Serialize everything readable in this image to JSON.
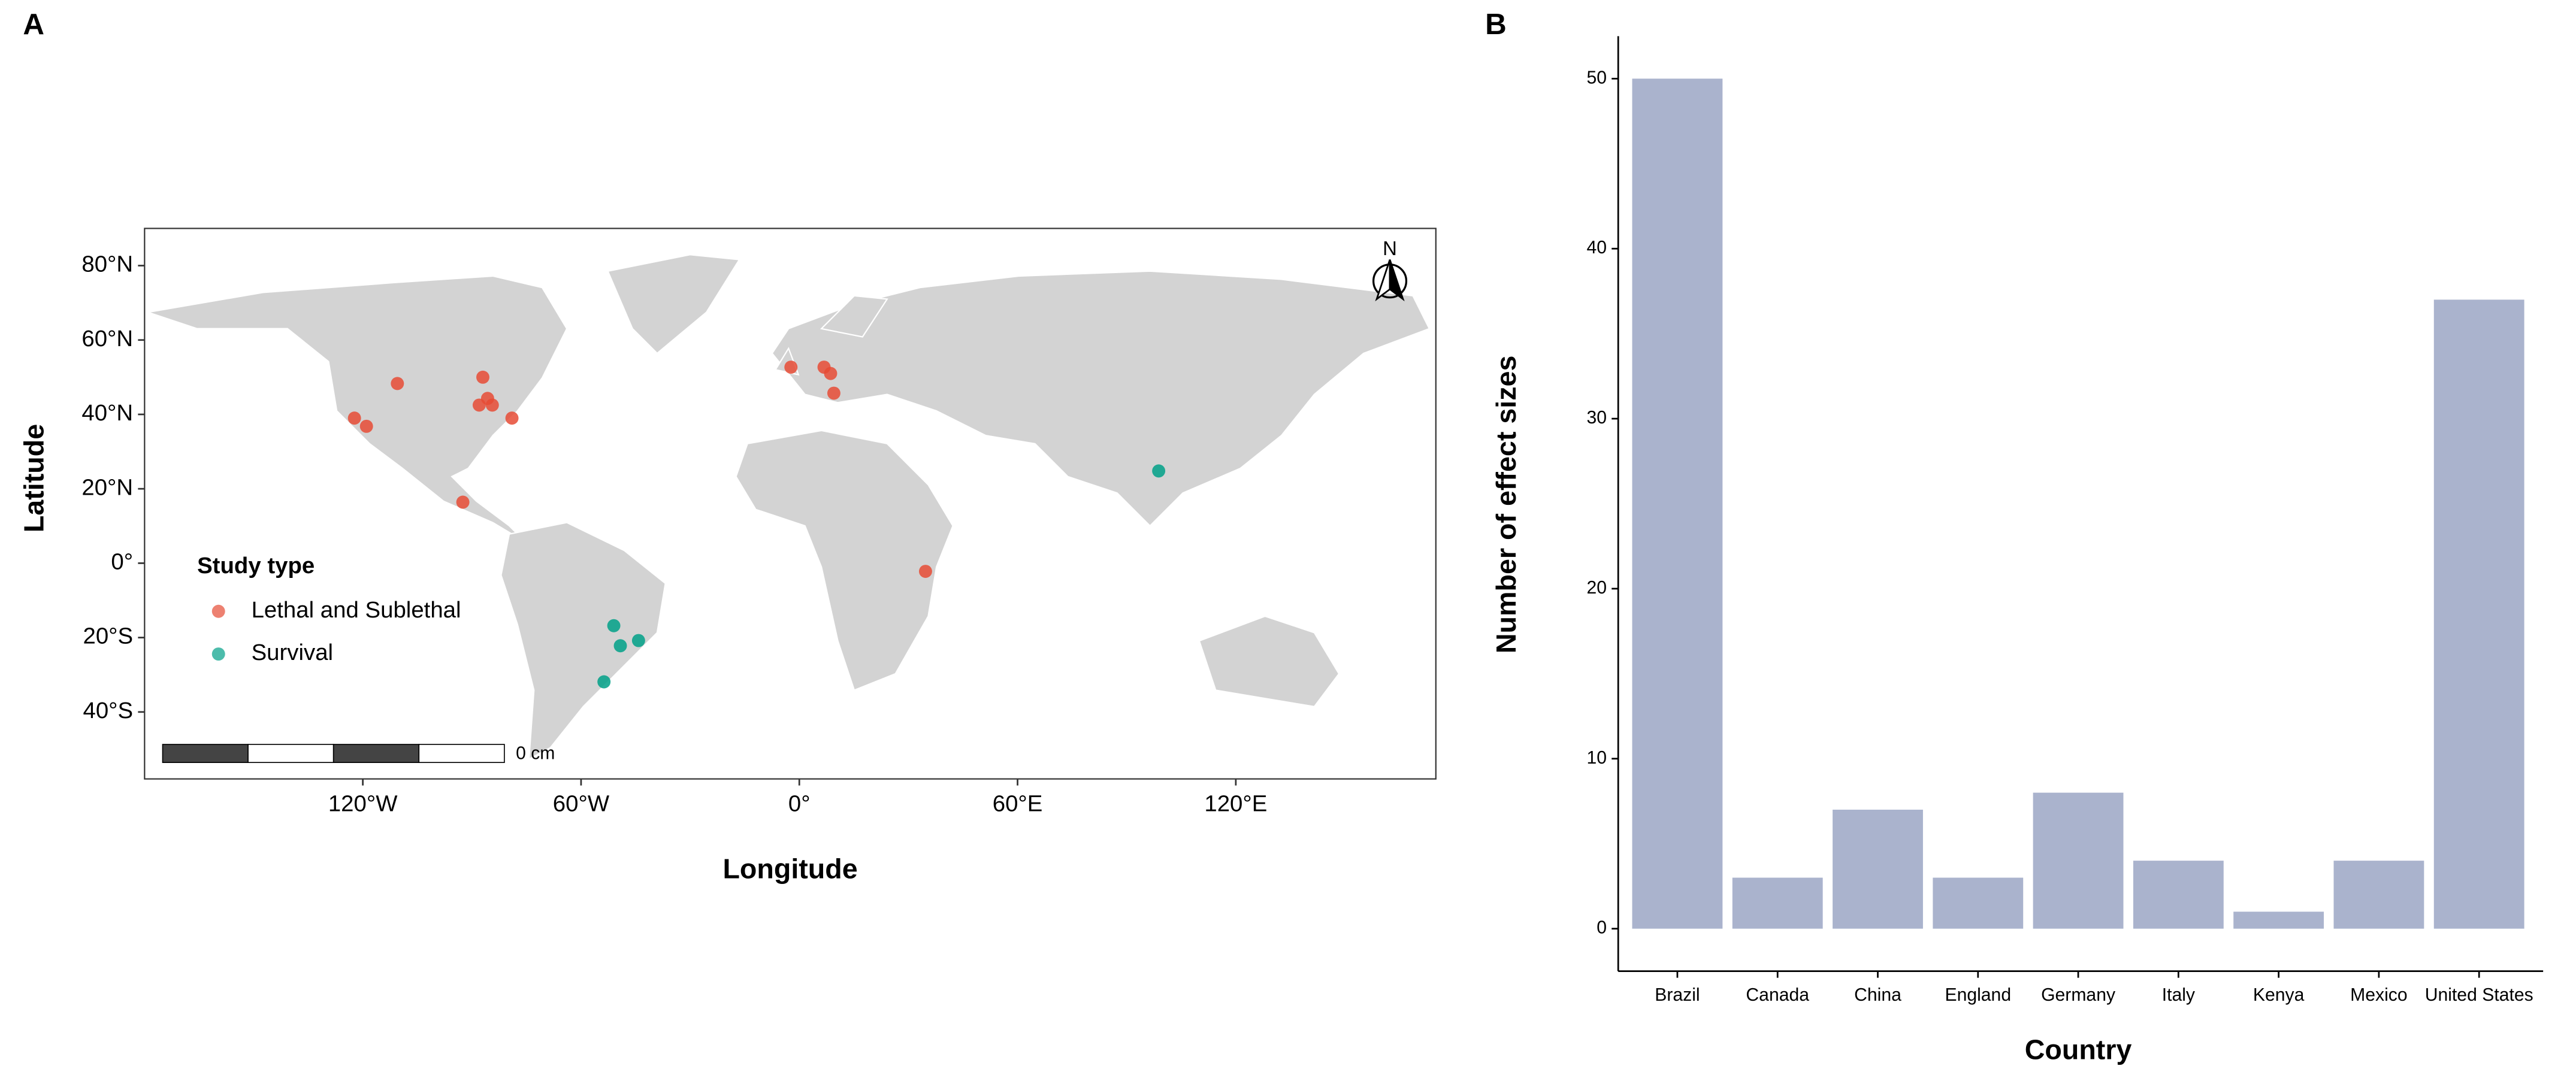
{
  "chart_data": [
    {
      "type": "scatter",
      "panel_label": "A",
      "x_label": "Longitude",
      "y_label": "Latitude",
      "legend_title": "Study type",
      "scale_bar_label": "0 cm",
      "north_label": "N",
      "xlim": [
        -180,
        175
      ],
      "ylim": [
        -58,
        90
      ],
      "xticks": [
        {
          "value": -120,
          "label": "120°W"
        },
        {
          "value": -60,
          "label": "60°W"
        },
        {
          "value": 0,
          "label": "0°"
        },
        {
          "value": 60,
          "label": "60°E"
        },
        {
          "value": 120,
          "label": "120°E"
        }
      ],
      "yticks": [
        {
          "value": 80,
          "label": "80°N"
        },
        {
          "value": 60,
          "label": "60°N"
        },
        {
          "value": 40,
          "label": "40°N"
        },
        {
          "value": 20,
          "label": "20°N"
        },
        {
          "value": 0,
          "label": "0°"
        },
        {
          "value": -20,
          "label": "20°S"
        },
        {
          "value": -40,
          "label": "40°S"
        }
      ],
      "series": [
        {
          "name": "Lethal and Sublethal",
          "color": "#e64b35",
          "x": [
            -110.5,
            -122.3,
            -119,
            -87,
            -88,
            -85.7,
            -84.4,
            -79,
            -92.5,
            -2.3,
            6.8,
            8.6,
            9.5,
            34.7
          ],
          "y": [
            48.3,
            39,
            36.8,
            50,
            42.5,
            44.3,
            42.5,
            39,
            16.4,
            52.7,
            52.7,
            51,
            45.7,
            -2.2
          ]
        },
        {
          "name": "Survival",
          "color": "#00a087",
          "x": [
            -51,
            -49.2,
            -44.2,
            -53.7,
            98.8
          ],
          "y": [
            -16.8,
            -22.2,
            -20.8,
            -31.9,
            24.8
          ]
        }
      ]
    },
    {
      "type": "bar",
      "panel_label": "B",
      "x_label": "Country",
      "y_label": "Number of effect sizes",
      "color": "#aab3cd",
      "categories": [
        "Brazil",
        "Canada",
        "China",
        "England",
        "Germany",
        "Italy",
        "Kenya",
        "Mexico",
        "United States"
      ],
      "values": [
        50,
        3,
        7,
        3,
        8,
        4,
        1,
        4,
        37
      ],
      "ylim": [
        -2.5,
        52.5
      ],
      "yticks": [
        0,
        10,
        20,
        30,
        40,
        50
      ]
    }
  ]
}
